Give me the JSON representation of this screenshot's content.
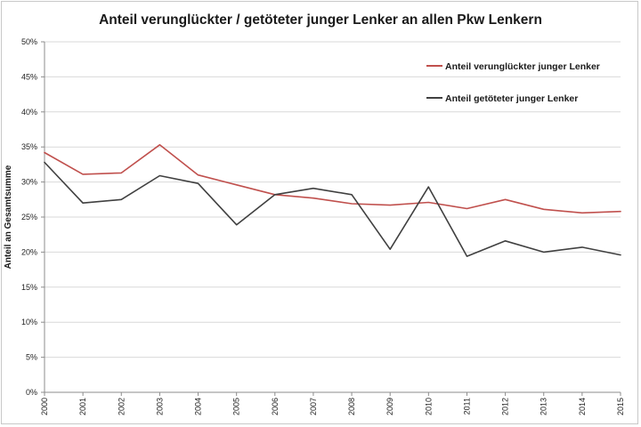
{
  "chart_data": {
    "type": "line",
    "title": "Anteil verunglückter / getöteter junger Lenker an allen Pkw Lenkern",
    "xlabel": "",
    "ylabel": "Anteil an Gesamtsumme",
    "ylim": [
      0,
      50
    ],
    "y_tick_step": 5,
    "y_tick_format": "percent",
    "grid": "horizontal",
    "legend_position": "top-right",
    "categories": [
      "2000",
      "2001",
      "2002",
      "2003",
      "2004",
      "2005",
      "2006",
      "2007",
      "2008",
      "2009",
      "2010",
      "2011",
      "2012",
      "2013",
      "2014",
      "2015"
    ],
    "series": [
      {
        "name": "Anteil verunglückter junger Lenker",
        "color": "#c0504d",
        "values": [
          34.2,
          31.1,
          31.3,
          35.3,
          31.0,
          29.6,
          28.2,
          27.7,
          26.9,
          26.7,
          27.1,
          26.2,
          27.5,
          26.1,
          25.6,
          25.8
        ]
      },
      {
        "name": "Anteil getöteter junger Lenker",
        "color": "#404040",
        "values": [
          32.8,
          27.0,
          27.5,
          30.9,
          29.8,
          23.9,
          28.2,
          29.1,
          28.2,
          20.4,
          29.3,
          19.4,
          21.6,
          20.0,
          20.7,
          19.6
        ]
      }
    ]
  }
}
